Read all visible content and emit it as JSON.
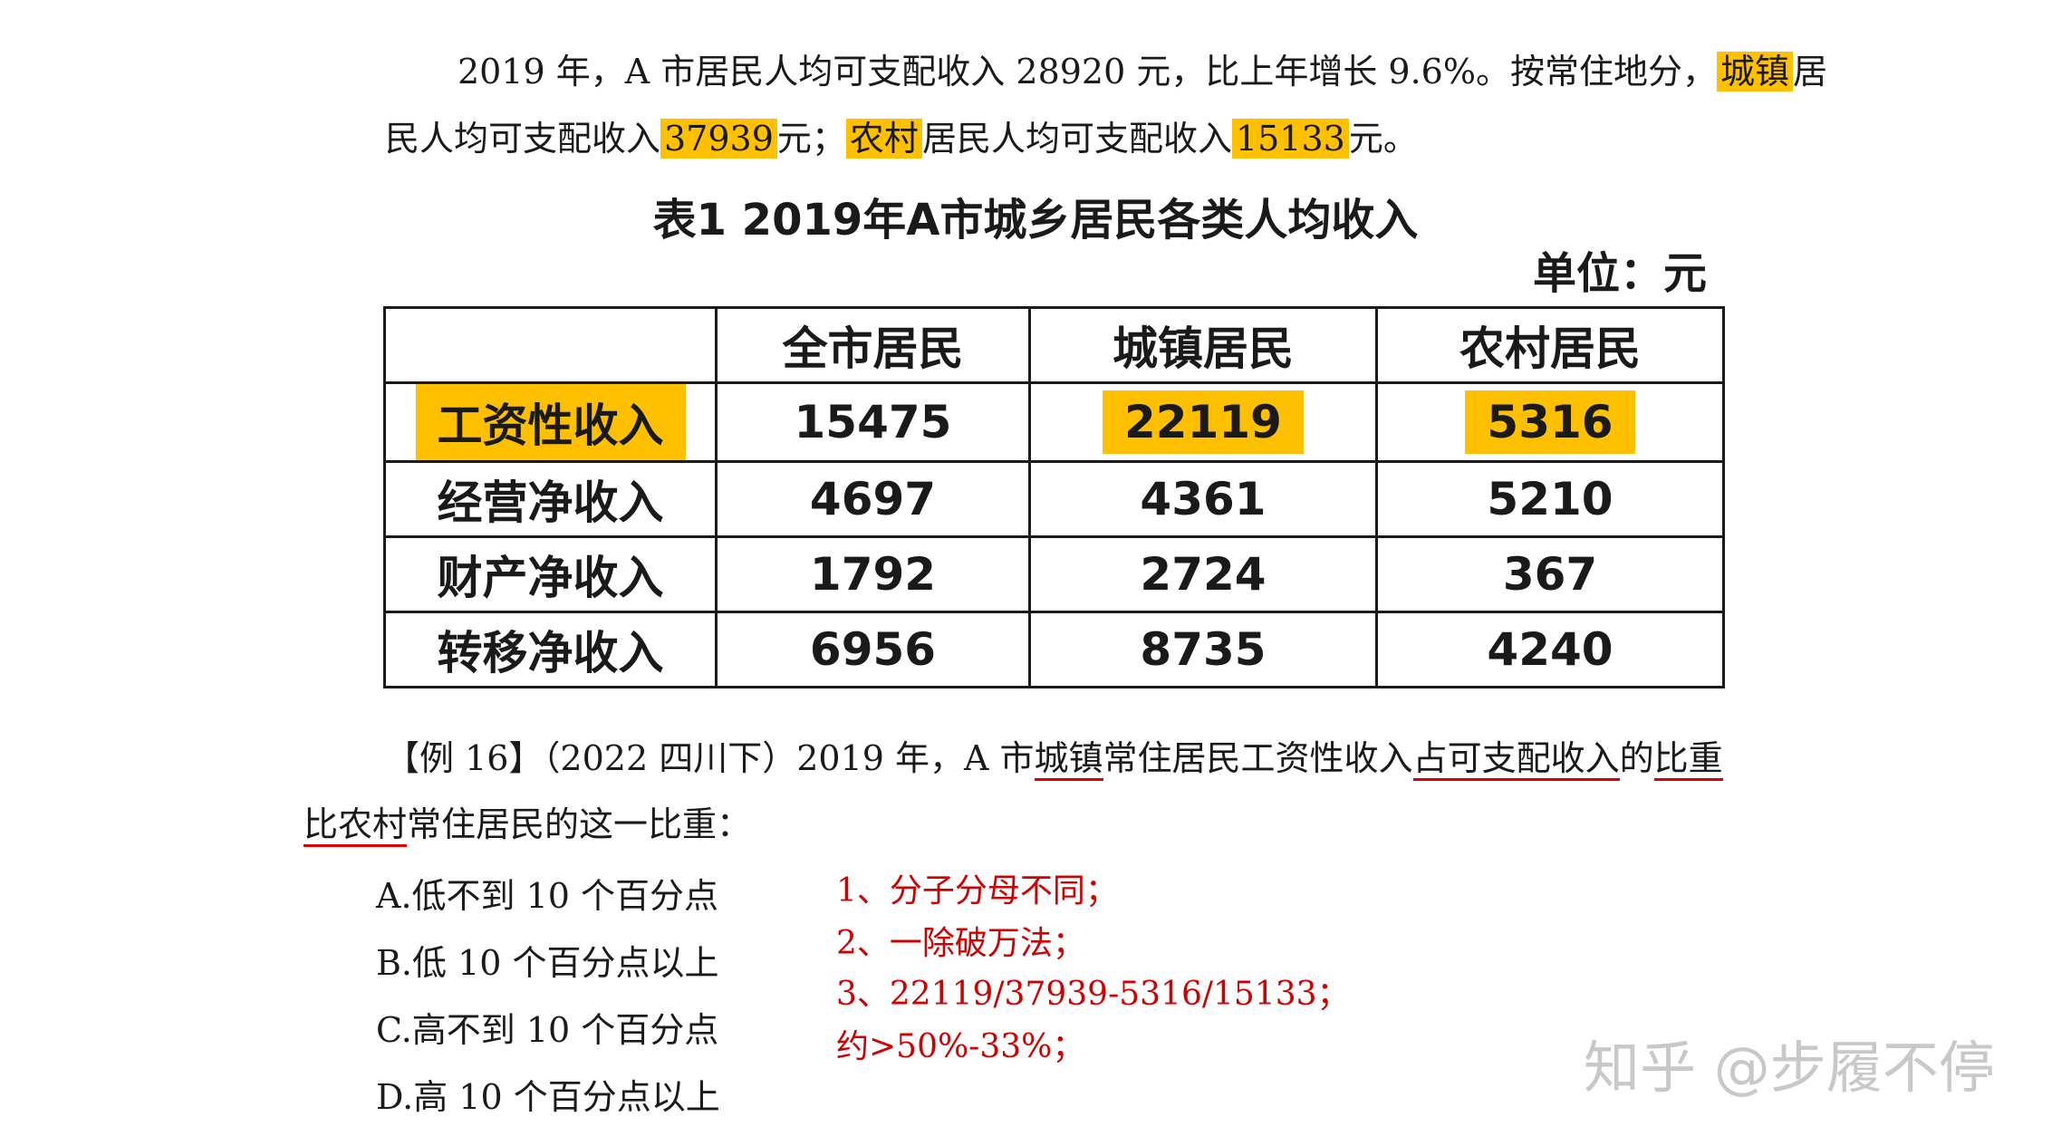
{
  "intro": {
    "l1_a": "2019 年，A 市居民人均可支配收入 28920 元，比上年增长 9.6%。按常住地分，",
    "l1_hl": "城镇",
    "l1_b": "居",
    "l2_a": "民人均可支配收入",
    "l2_hl1": "37939",
    "l2_b": "元；",
    "l2_hl2": "农村",
    "l2_c": "居民人均可支配收入",
    "l2_hl3": "15133",
    "l2_d": "元。"
  },
  "table": {
    "title": "表1  2019年A市城乡居民各类人均收入",
    "unit": "单位：元",
    "headers": [
      "",
      "全市居民",
      "城镇居民",
      "农村居民"
    ],
    "rows": [
      {
        "label": "工资性收入",
        "all": "15475",
        "urban": "22119",
        "rural": "5316"
      },
      {
        "label": "经营净收入",
        "all": "4697",
        "urban": "4361",
        "rural": "5210"
      },
      {
        "label": "财产净收入",
        "all": "1792",
        "urban": "2724",
        "rural": "367"
      },
      {
        "label": "转移净收入",
        "all": "6956",
        "urban": "8735",
        "rural": "4240"
      }
    ]
  },
  "question": {
    "l1_a": "【例 16】（2022 四川下）2019 年，A 市",
    "l1_u1": "城镇",
    "l1_b": "常住居民工资性收入",
    "l1_u2": "占可支配收入",
    "l1_c": "的",
    "l1_u3": "比重",
    "l2_u": "比农村",
    "l2_a": "常住居民的这一比重：",
    "options": [
      "A.低不到 10 个百分点",
      "B.低 10 个百分点以上",
      "C.高不到 10 个百分点",
      "D.高 10 个百分点以上"
    ]
  },
  "notes": [
    "1、分子分母不同；",
    "2、一除破万法；",
    "3、22119/37939-5316/15133；",
    "约>50%-33%；"
  ],
  "watermark": "知乎 @步履不停",
  "colors": {
    "highlight": "#ffc000",
    "note": "#d00000",
    "underline": "#d00000"
  }
}
